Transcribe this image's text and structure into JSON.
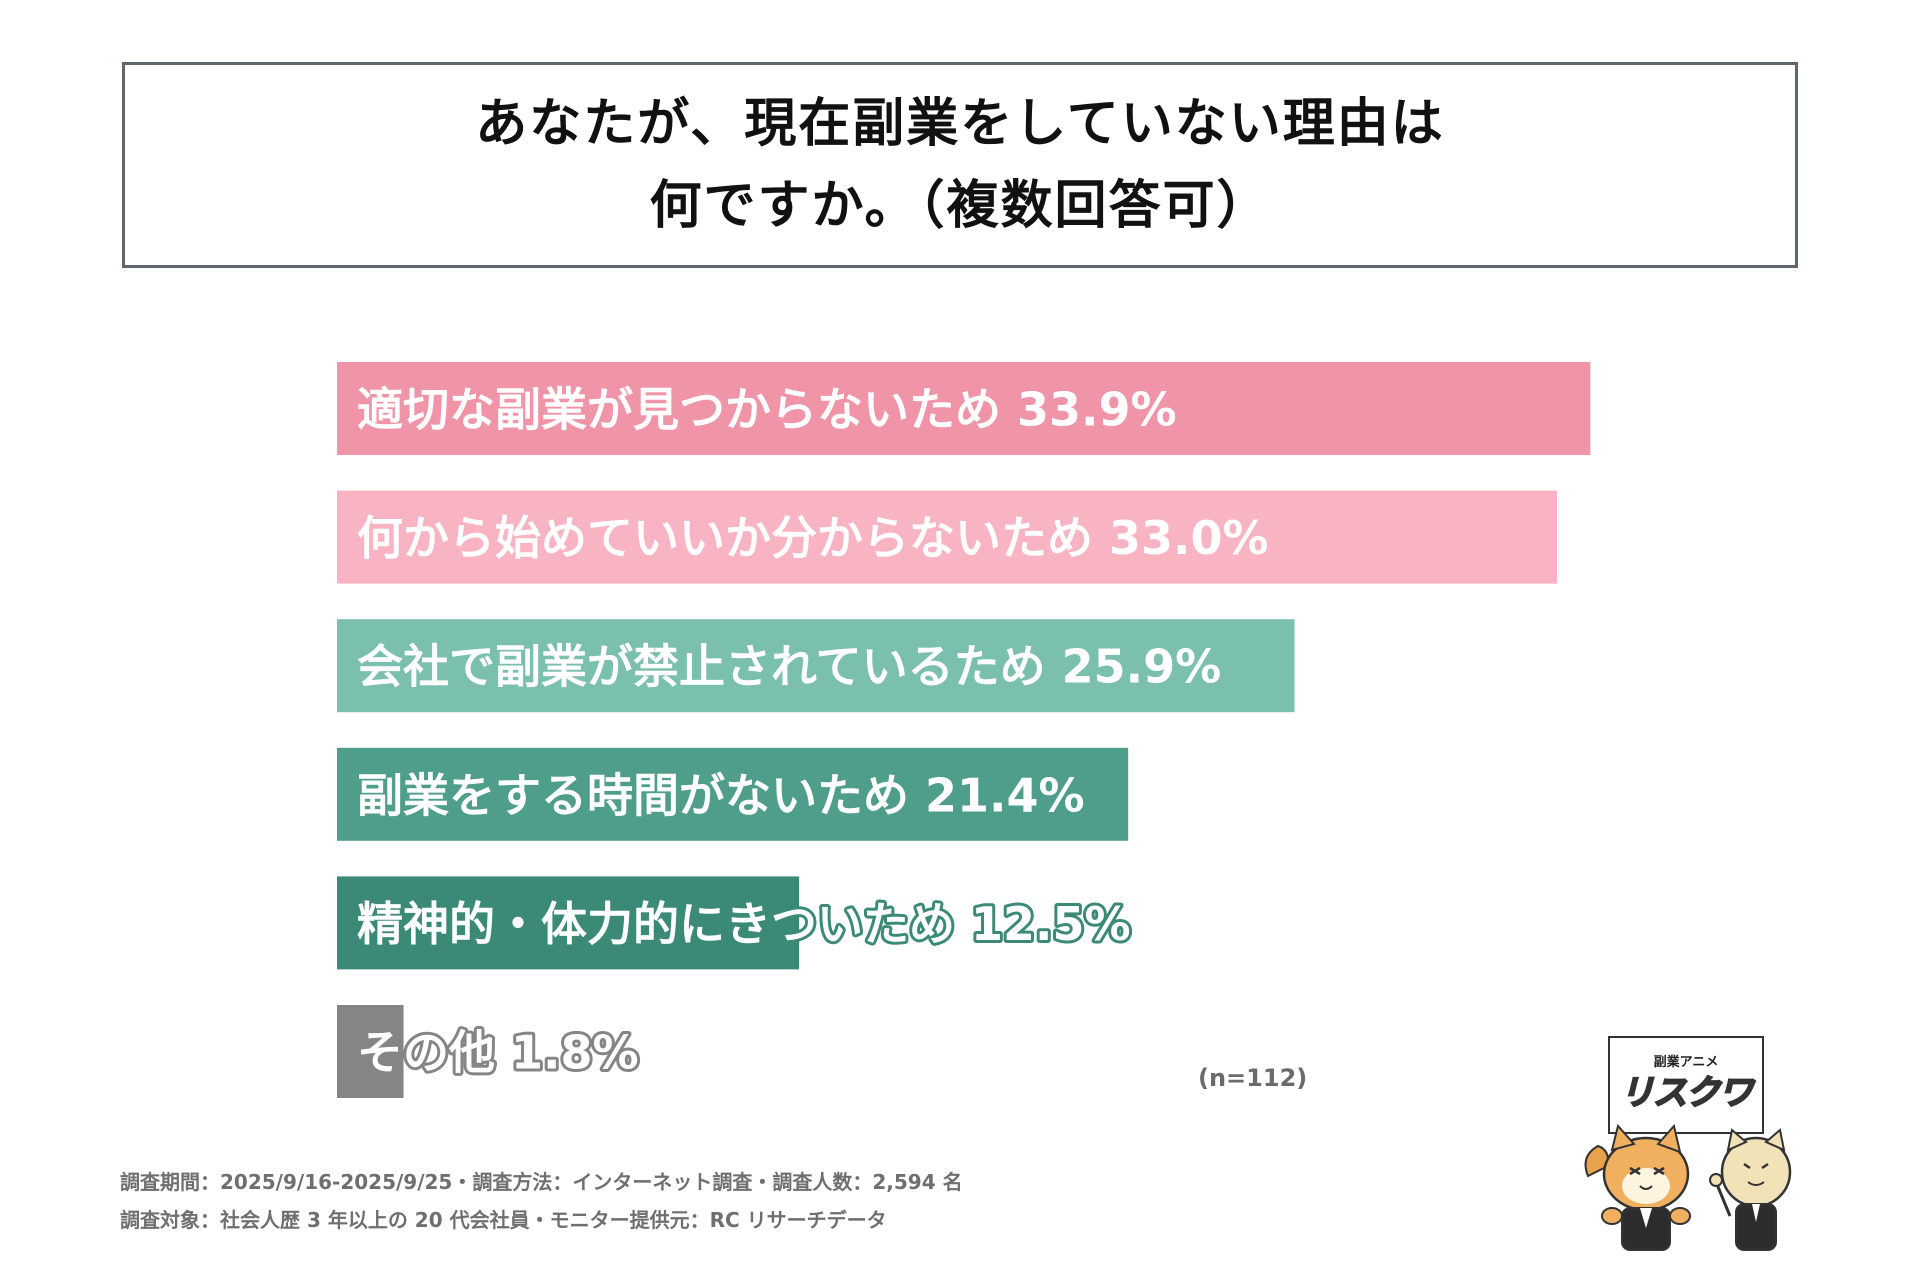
{
  "title": {
    "line1": "あなたが、現在副業をしていない理由は",
    "line2": "何ですか。（複数回答可）"
  },
  "chart_data": {
    "type": "bar",
    "orientation": "horizontal",
    "categories": [
      "適切な副業が見つからないため",
      "何から始めていいか分からないため",
      "会社で副業が禁止されているため",
      "副業をする時間がないため",
      "精神的・体力的にきついため",
      "その他"
    ],
    "values": [
      33.9,
      33.0,
      25.9,
      21.4,
      12.5,
      1.8
    ],
    "value_labels": [
      "33.9%",
      "33.0%",
      "25.9%",
      "21.4%",
      "12.5%",
      "1.8%"
    ],
    "unit": "%",
    "colors": [
      "#f094a7",
      "#f8b4c3",
      "#7bbfae",
      "#4f9e8b",
      "#3a8a77",
      "#858585"
    ],
    "xlim": [
      0,
      34
    ],
    "grid": false,
    "legend": "none"
  },
  "sample_size": "(n=112)",
  "footnotes": {
    "line1": "調査期間：2025/9/16-2025/9/25・調査方法：インターネット調査・調査人数：2,594 名",
    "line2": "調査対象：社会人歴 3 年以上の 20 代会社員・モニター提供元：RC リサーチデータ"
  },
  "logo": {
    "subtitle": "副業アニメ",
    "name": "リスクワ"
  }
}
